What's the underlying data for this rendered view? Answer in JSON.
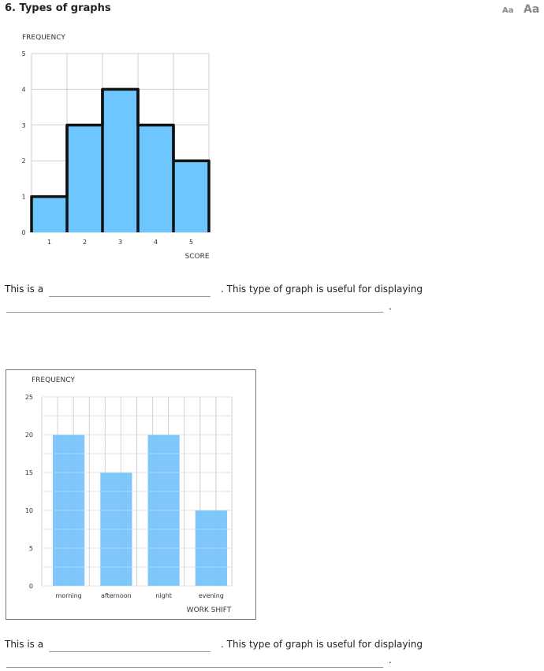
{
  "question": {
    "title": "6. Types of graphs"
  },
  "font_controls": {
    "small": "Aa",
    "large": "Aa"
  },
  "sentences": [
    {
      "prefix": "This is a",
      "middle": ". This type of graph is useful for displaying",
      "end": "."
    },
    {
      "prefix": "This is a",
      "middle": ". This type of graph is useful for displaying",
      "end": "."
    }
  ],
  "chart_data": [
    {
      "type": "bar",
      "title": "",
      "ylabel": "FREQUENCY",
      "xlabel": "SCORE",
      "categories": [
        "1",
        "2",
        "3",
        "4",
        "5"
      ],
      "values": [
        1,
        3,
        4,
        3,
        2
      ],
      "ylim": [
        0,
        5
      ],
      "yticks": [
        "0",
        "1",
        "2",
        "3",
        "4",
        "5"
      ],
      "grid": true,
      "bar_color": "#6ec6ff",
      "outline_color": "#111111"
    },
    {
      "type": "bar",
      "title": "",
      "ylabel": "FREQUENCY",
      "xlabel": "WORK SHIFT",
      "categories": [
        "morning",
        "afternoon",
        "night",
        "evening"
      ],
      "values": [
        20,
        15,
        20,
        10
      ],
      "ylim": [
        0,
        25
      ],
      "yticks": [
        "0",
        "5",
        "10",
        "15",
        "20",
        "25"
      ],
      "grid": true,
      "bar_color": "#78c4fb"
    }
  ]
}
